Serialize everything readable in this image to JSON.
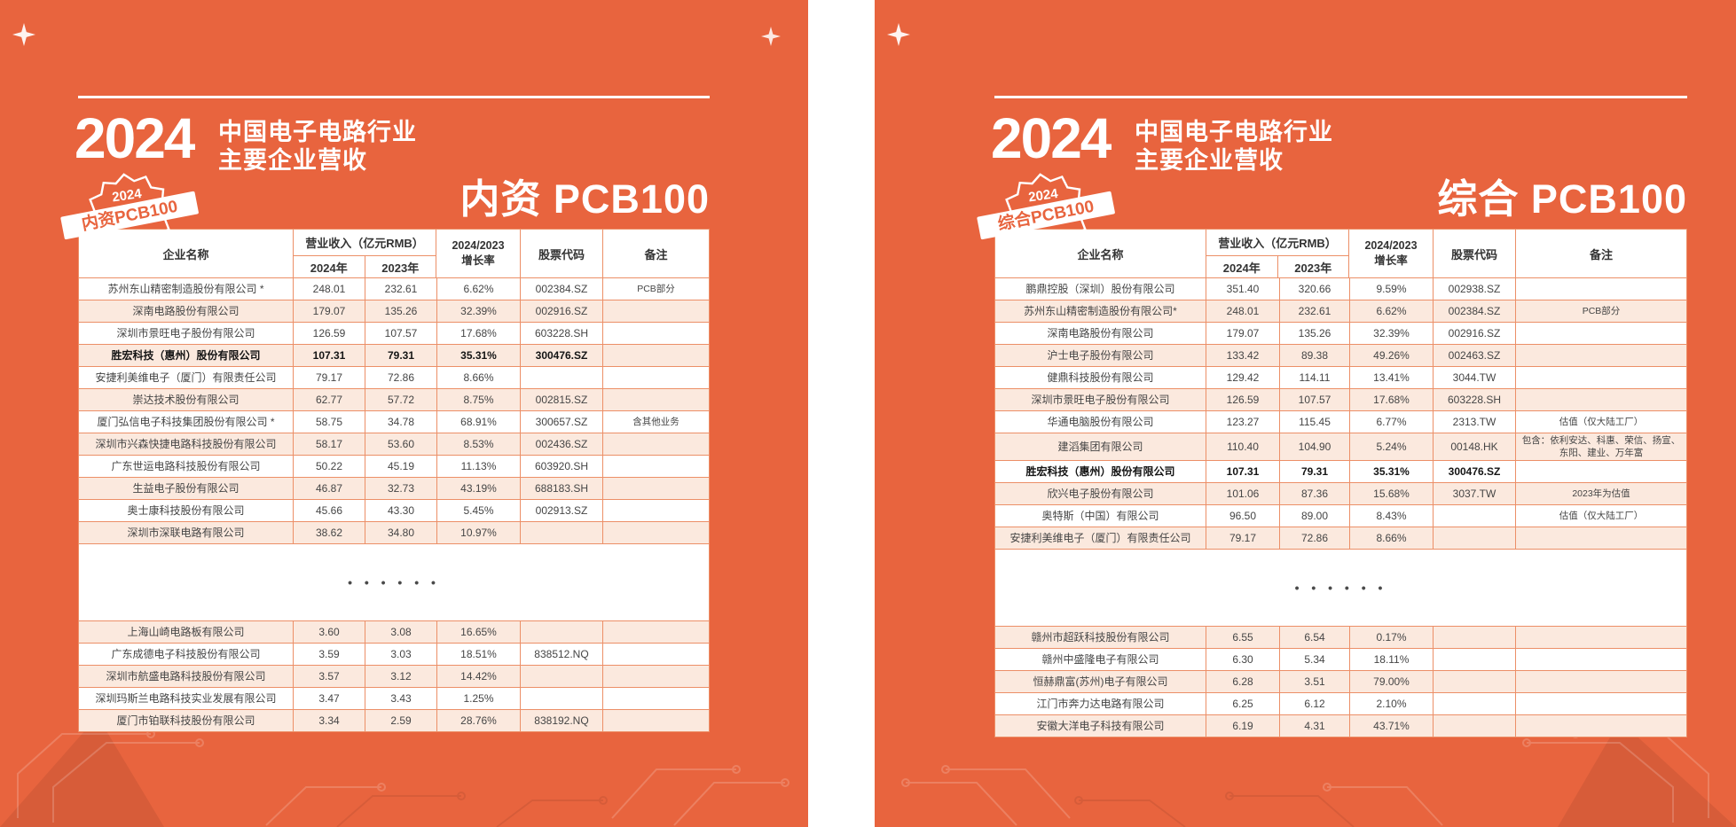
{
  "colors": {
    "panel_background": "#E8643E",
    "table_border": "#EC8F67",
    "row_alternate": "#FBE9DE",
    "text_dark": "#454545",
    "title_white": "#FFFFFF"
  },
  "panels": [
    {
      "id": "domestic",
      "year_big": "2024",
      "industry_line1": "中国电子电路行业",
      "industry_line2": "主要企业营收",
      "badge": {
        "year": "2024",
        "label": "内资PCB100",
        "sub1": "· 中国电子电路行业 ·",
        "sub2": "主要企业营收"
      },
      "title": "内资 PCB100",
      "table": {
        "header": {
          "company": "企业名称",
          "revenue_group": "营业收入（亿元RMB）",
          "year_2024": "2024年",
          "year_2023": "2023年",
          "growth_line1": "2024/2023",
          "growth_line2": "增长率",
          "stock_code": "股票代码",
          "note": "备注"
        },
        "ellipsis": "• • •  • • •",
        "rows_top": [
          {
            "company": "苏州东山精密制造股份有限公司 *",
            "y2024": "248.01",
            "y2023": "232.61",
            "growth": "6.62%",
            "code": "002384.SZ",
            "note": "PCB部分",
            "bold": false
          },
          {
            "company": "深南电路股份有限公司",
            "y2024": "179.07",
            "y2023": "135.26",
            "growth": "32.39%",
            "code": "002916.SZ",
            "note": "",
            "bold": false
          },
          {
            "company": "深圳市景旺电子股份有限公司",
            "y2024": "126.59",
            "y2023": "107.57",
            "growth": "17.68%",
            "code": "603228.SH",
            "note": "",
            "bold": false
          },
          {
            "company": "胜宏科技（惠州）股份有限公司",
            "y2024": "107.31",
            "y2023": "79.31",
            "growth": "35.31%",
            "code": "300476.SZ",
            "note": "",
            "bold": true
          },
          {
            "company": "安捷利美维电子（厦门）有限责任公司",
            "y2024": "79.17",
            "y2023": "72.86",
            "growth": "8.66%",
            "code": "",
            "note": "",
            "bold": false
          },
          {
            "company": "崇达技术股份有限公司",
            "y2024": "62.77",
            "y2023": "57.72",
            "growth": "8.75%",
            "code": "002815.SZ",
            "note": "",
            "bold": false
          },
          {
            "company": "厦门弘信电子科技集团股份有限公司 *",
            "y2024": "58.75",
            "y2023": "34.78",
            "growth": "68.91%",
            "code": "300657.SZ",
            "note": "含其他业务",
            "bold": false
          },
          {
            "company": "深圳市兴森快捷电路科技股份有限公司",
            "y2024": "58.17",
            "y2023": "53.60",
            "growth": "8.53%",
            "code": "002436.SZ",
            "note": "",
            "bold": false
          },
          {
            "company": "广东世运电路科技股份有限公司",
            "y2024": "50.22",
            "y2023": "45.19",
            "growth": "11.13%",
            "code": "603920.SH",
            "note": "",
            "bold": false
          },
          {
            "company": "生益电子股份有限公司",
            "y2024": "46.87",
            "y2023": "32.73",
            "growth": "43.19%",
            "code": "688183.SH",
            "note": "",
            "bold": false
          },
          {
            "company": "奥士康科技股份有限公司",
            "y2024": "45.66",
            "y2023": "43.30",
            "growth": "5.45%",
            "code": "002913.SZ",
            "note": "",
            "bold": false
          },
          {
            "company": "深圳市深联电路有限公司",
            "y2024": "38.62",
            "y2023": "34.80",
            "growth": "10.97%",
            "code": "",
            "note": "",
            "bold": false
          }
        ],
        "rows_bottom": [
          {
            "company": "上海山崎电路板有限公司",
            "y2024": "3.60",
            "y2023": "3.08",
            "growth": "16.65%",
            "code": "",
            "note": "",
            "bold": false
          },
          {
            "company": "广东成德电子科技股份有限公司",
            "y2024": "3.59",
            "y2023": "3.03",
            "growth": "18.51%",
            "code": "838512.NQ",
            "note": "",
            "bold": false
          },
          {
            "company": "深圳市航盛电路科技股份有限公司",
            "y2024": "3.57",
            "y2023": "3.12",
            "growth": "14.42%",
            "code": "",
            "note": "",
            "bold": false
          },
          {
            "company": "深圳玛斯兰电路科技实业发展有限公司",
            "y2024": "3.47",
            "y2023": "3.43",
            "growth": "1.25%",
            "code": "",
            "note": "",
            "bold": false
          },
          {
            "company": "厦门市铂联科技股份有限公司",
            "y2024": "3.34",
            "y2023": "2.59",
            "growth": "28.76%",
            "code": "838192.NQ",
            "note": "",
            "bold": false
          }
        ]
      }
    },
    {
      "id": "comprehensive",
      "year_big": "2024",
      "industry_line1": "中国电子电路行业",
      "industry_line2": "主要企业营收",
      "badge": {
        "year": "2024",
        "label": "综合PCB100",
        "sub1": "· 中国电子电路行业 ·",
        "sub2": "主要企业营收"
      },
      "title": "综合 PCB100",
      "table": {
        "header": {
          "company": "企业名称",
          "revenue_group": "营业收入（亿元RMB）",
          "year_2024": "2024年",
          "year_2023": "2023年",
          "growth_line1": "2024/2023",
          "growth_line2": "增长率",
          "stock_code": "股票代码",
          "note": "备注"
        },
        "ellipsis": "• • •  • • •",
        "rows_top": [
          {
            "company": "鹏鼎控股（深圳）股份有限公司",
            "y2024": "351.40",
            "y2023": "320.66",
            "growth": "9.59%",
            "code": "002938.SZ",
            "note": "",
            "bold": false
          },
          {
            "company": "苏州东山精密制造股份有限公司*",
            "y2024": "248.01",
            "y2023": "232.61",
            "growth": "6.62%",
            "code": "002384.SZ",
            "note": "PCB部分",
            "bold": false
          },
          {
            "company": "深南电路股份有限公司",
            "y2024": "179.07",
            "y2023": "135.26",
            "growth": "32.39%",
            "code": "002916.SZ",
            "note": "",
            "bold": false
          },
          {
            "company": "沪士电子股份有限公司",
            "y2024": "133.42",
            "y2023": "89.38",
            "growth": "49.26%",
            "code": "002463.SZ",
            "note": "",
            "bold": false
          },
          {
            "company": "健鼎科技股份有限公司",
            "y2024": "129.42",
            "y2023": "114.11",
            "growth": "13.41%",
            "code": "3044.TW",
            "note": "",
            "bold": false
          },
          {
            "company": "深圳市景旺电子股份有限公司",
            "y2024": "126.59",
            "y2023": "107.57",
            "growth": "17.68%",
            "code": "603228.SH",
            "note": "",
            "bold": false
          },
          {
            "company": "华通电脑股份有限公司",
            "y2024": "123.27",
            "y2023": "115.45",
            "growth": "6.77%",
            "code": "2313.TW",
            "note": "估值（仅大陆工厂）",
            "bold": false
          },
          {
            "company": "建滔集团有限公司",
            "y2024": "110.40",
            "y2023": "104.90",
            "growth": "5.24%",
            "code": "00148.HK",
            "note": "包含：依利安达、科惠、荣信、扬宣、东阳、建业、万年富",
            "bold": false
          },
          {
            "company": "胜宏科技（惠州）股份有限公司",
            "y2024": "107.31",
            "y2023": "79.31",
            "growth": "35.31%",
            "code": "300476.SZ",
            "note": "",
            "bold": true
          },
          {
            "company": "欣兴电子股份有限公司",
            "y2024": "101.06",
            "y2023": "87.36",
            "growth": "15.68%",
            "code": "3037.TW",
            "note": "2023年为估值",
            "bold": false
          },
          {
            "company": "奥特斯（中国）有限公司",
            "y2024": "96.50",
            "y2023": "89.00",
            "growth": "8.43%",
            "code": "",
            "note": "估值（仅大陆工厂）",
            "bold": false
          },
          {
            "company": "安捷利美维电子（厦门）有限责任公司",
            "y2024": "79.17",
            "y2023": "72.86",
            "growth": "8.66%",
            "code": "",
            "note": "",
            "bold": false
          }
        ],
        "rows_bottom": [
          {
            "company": "赣州市超跃科技股份有限公司",
            "y2024": "6.55",
            "y2023": "6.54",
            "growth": "0.17%",
            "code": "",
            "note": "",
            "bold": false
          },
          {
            "company": "赣州中盛隆电子有限公司",
            "y2024": "6.30",
            "y2023": "5.34",
            "growth": "18.11%",
            "code": "",
            "note": "",
            "bold": false
          },
          {
            "company": "恒赫鼎富(苏州)电子有限公司",
            "y2024": "6.28",
            "y2023": "3.51",
            "growth": "79.00%",
            "code": "",
            "note": "",
            "bold": false
          },
          {
            "company": "江门市奔力达电路有限公司",
            "y2024": "6.25",
            "y2023": "6.12",
            "growth": "2.10%",
            "code": "",
            "note": "",
            "bold": false
          },
          {
            "company": "安徽大洋电子科技有限公司",
            "y2024": "6.19",
            "y2023": "4.31",
            "growth": "43.71%",
            "code": "",
            "note": "",
            "bold": false
          }
        ]
      }
    }
  ]
}
